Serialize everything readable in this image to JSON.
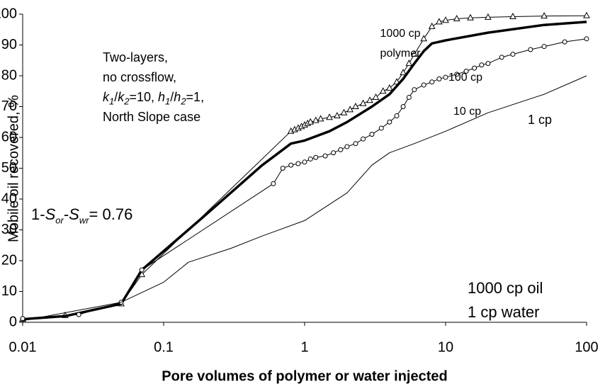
{
  "chart_data": {
    "type": "line",
    "xlabel": "Pore volumes of polymer or water injected",
    "ylabel": "Mobile oil recovered, %",
    "xscale": "log",
    "xlim": [
      0.01,
      100
    ],
    "xticks": [
      0.01,
      0.1,
      1,
      10,
      100
    ],
    "ylim": [
      0,
      100
    ],
    "yticks": [
      0,
      10,
      20,
      30,
      40,
      50,
      60,
      70,
      80,
      90,
      100
    ],
    "series": [
      {
        "name": "1000 cp polymer",
        "color": "#000000",
        "width": 1,
        "marker": "triangle",
        "x": [
          0.01,
          0.02,
          0.05,
          0.07,
          0.8,
          0.85,
          0.9,
          0.95,
          1.0,
          1.05,
          1.1,
          1.2,
          1.3,
          1.5,
          1.7,
          1.9,
          2.1,
          2.3,
          2.6,
          2.9,
          3.2,
          3.6,
          4,
          4.5,
          5,
          5.5,
          6,
          7,
          8,
          9,
          10,
          12,
          15,
          20,
          30,
          50,
          100
        ],
        "values": [
          1,
          2.2,
          6,
          15.5,
          62,
          62.5,
          63,
          63.5,
          64,
          64.5,
          65,
          65.5,
          66,
          66.5,
          67,
          68,
          69,
          70,
          71,
          72,
          73,
          75,
          76,
          78,
          81,
          84,
          87,
          92,
          96,
          97.5,
          98,
          98.5,
          98.8,
          99,
          99.2,
          99.4,
          99.5
        ]
      },
      {
        "name": "100 cp",
        "color": "#000000",
        "width": 3.5,
        "marker": "none",
        "x": [
          0.01,
          0.02,
          0.05,
          0.07,
          0.2,
          0.5,
          0.8,
          1,
          1.5,
          2,
          3,
          4,
          5,
          6,
          7,
          8,
          10,
          20,
          50,
          100
        ],
        "values": [
          1,
          2,
          6,
          17,
          35,
          51,
          58,
          59,
          62,
          65,
          70,
          74,
          79,
          84,
          88,
          90.5,
          91.5,
          94,
          96.5,
          97.5
        ]
      },
      {
        "name": "10 cp",
        "color": "#000000",
        "width": 1,
        "marker": "circle",
        "x": [
          0.01,
          0.025,
          0.05,
          0.07,
          0.6,
          0.7,
          0.8,
          0.9,
          1,
          1.1,
          1.2,
          1.4,
          1.6,
          1.8,
          2,
          2.3,
          2.6,
          3,
          3.5,
          4,
          4.5,
          5,
          5.5,
          6,
          7,
          8,
          9,
          10,
          12,
          14,
          16,
          18,
          20,
          25,
          30,
          40,
          50,
          70,
          100
        ],
        "values": [
          1.2,
          2.5,
          6.5,
          17,
          45,
          50,
          51,
          51.5,
          52,
          53,
          53.5,
          54,
          55,
          56,
          57,
          58,
          59.5,
          61,
          63,
          65,
          67,
          70,
          73,
          75.5,
          77,
          78,
          79,
          79.5,
          80.5,
          81.5,
          82.5,
          83.5,
          84,
          86,
          87,
          88.5,
          89.5,
          91,
          92
        ]
      },
      {
        "name": "1 cp",
        "color": "#000000",
        "width": 1,
        "marker": "none",
        "x": [
          0.01,
          0.05,
          0.1,
          0.15,
          0.3,
          0.5,
          1,
          2,
          3,
          4,
          6,
          10,
          20,
          50,
          100
        ],
        "values": [
          0.5,
          6.5,
          13,
          19.5,
          24,
          28,
          33,
          42,
          51,
          55,
          58,
          62,
          68,
          74,
          80
        ]
      }
    ],
    "annotations": [
      [
        {
          "text": "Two-layers,"
        }
      ],
      [
        {
          "text": "no crossflow,"
        }
      ],
      [
        {
          "text": "k",
          "italic": true
        },
        {
          "text": "1",
          "italic": true,
          "sub": true
        },
        {
          "text": "/"
        },
        {
          "text": "k",
          "italic": true
        },
        {
          "text": "2",
          "italic": true,
          "sub": true
        },
        {
          "text": "=10, "
        },
        {
          "text": "h",
          "italic": true
        },
        {
          "text": "1",
          "italic": true,
          "sub": true
        },
        {
          "text": "/"
        },
        {
          "text": "h",
          "italic": true
        },
        {
          "text": "2",
          "italic": true,
          "sub": true
        },
        {
          "text": "=1,"
        }
      ],
      [
        {
          "text": "North Slope case"
        }
      ]
    ],
    "saturation_note": [
      {
        "text": "1-"
      },
      {
        "text": "S",
        "italic": true
      },
      {
        "text": "or",
        "italic": true,
        "sub": true
      },
      {
        "text": "-"
      },
      {
        "text": "S",
        "italic": true
      },
      {
        "text": "wr",
        "italic": true,
        "sub": true
      },
      {
        "text": "= 0.76"
      }
    ],
    "fluid_note": [
      "1000 cp oil",
      "1 cp water"
    ]
  }
}
